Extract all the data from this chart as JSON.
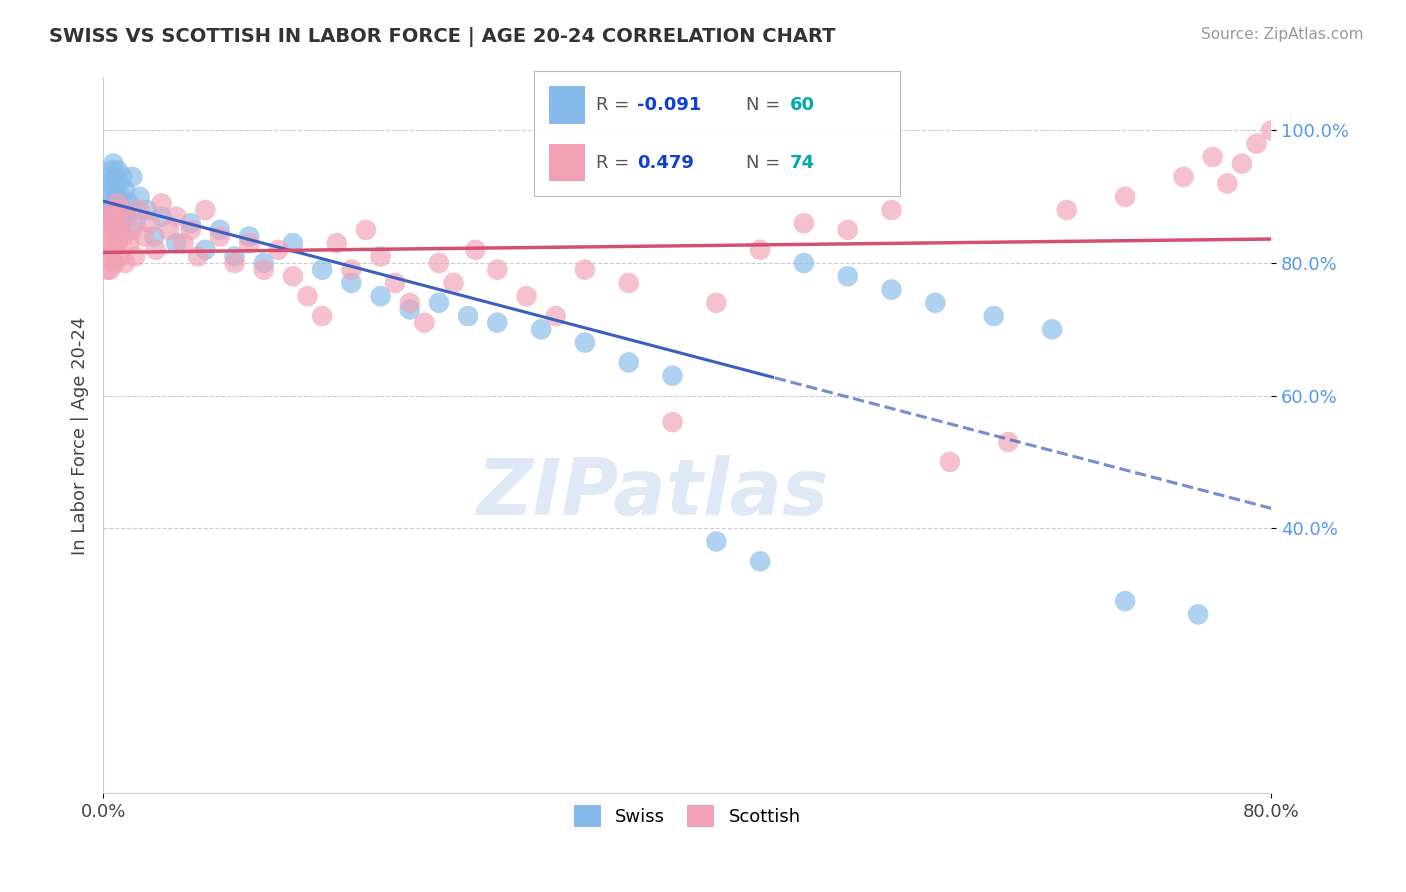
{
  "title": "SWISS VS SCOTTISH IN LABOR FORCE | AGE 20-24 CORRELATION CHART",
  "source_text": "Source: ZipAtlas.com",
  "ylabel": "In Labor Force | Age 20-24",
  "xlim": [
    0.0,
    0.8
  ],
  "ylim": [
    0.0,
    1.08
  ],
  "xtick_labels": [
    "0.0%",
    "80.0%"
  ],
  "xtick_positions": [
    0.0,
    0.8
  ],
  "ytick_labels": [
    "40.0%",
    "60.0%",
    "80.0%",
    "100.0%"
  ],
  "ytick_positions": [
    0.4,
    0.6,
    0.8,
    1.0
  ],
  "swiss_color": "#85BAEA",
  "scottish_color": "#F2A0B5",
  "swiss_line_color": "#3B5FC0",
  "scottish_line_color": "#D45070",
  "swiss_R": -0.091,
  "swiss_N": 60,
  "scottish_R": 0.479,
  "scottish_N": 74,
  "legend_R_color": "#1040D0",
  "legend_N_color": "#00AAAA",
  "watermark_text": "ZIPatlas",
  "swiss_x": [
    0.002,
    0.003,
    0.003,
    0.004,
    0.004,
    0.005,
    0.005,
    0.006,
    0.006,
    0.007,
    0.007,
    0.008,
    0.008,
    0.009,
    0.009,
    0.01,
    0.01,
    0.011,
    0.011,
    0.012,
    0.013,
    0.014,
    0.015,
    0.016,
    0.018,
    0.02,
    0.022,
    0.025,
    0.03,
    0.035,
    0.04,
    0.05,
    0.06,
    0.07,
    0.08,
    0.09,
    0.1,
    0.11,
    0.13,
    0.15,
    0.17,
    0.19,
    0.21,
    0.23,
    0.25,
    0.27,
    0.3,
    0.33,
    0.36,
    0.39,
    0.42,
    0.45,
    0.48,
    0.51,
    0.54,
    0.57,
    0.61,
    0.65,
    0.7,
    0.75
  ],
  "swiss_y": [
    0.88,
    0.91,
    0.87,
    0.93,
    0.89,
    0.92,
    0.85,
    0.94,
    0.88,
    0.95,
    0.91,
    0.86,
    0.93,
    0.9,
    0.87,
    0.94,
    0.88,
    0.92,
    0.85,
    0.9,
    0.93,
    0.88,
    0.91,
    0.87,
    0.89,
    0.93,
    0.86,
    0.9,
    0.88,
    0.84,
    0.87,
    0.83,
    0.86,
    0.82,
    0.85,
    0.81,
    0.84,
    0.8,
    0.83,
    0.79,
    0.77,
    0.75,
    0.73,
    0.74,
    0.72,
    0.71,
    0.7,
    0.68,
    0.65,
    0.63,
    0.38,
    0.35,
    0.8,
    0.78,
    0.76,
    0.74,
    0.72,
    0.7,
    0.29,
    0.27
  ],
  "scottish_x": [
    0.002,
    0.003,
    0.003,
    0.004,
    0.004,
    0.005,
    0.005,
    0.006,
    0.006,
    0.007,
    0.007,
    0.008,
    0.009,
    0.01,
    0.01,
    0.011,
    0.012,
    0.013,
    0.014,
    0.015,
    0.016,
    0.018,
    0.02,
    0.022,
    0.025,
    0.028,
    0.032,
    0.036,
    0.04,
    0.045,
    0.05,
    0.055,
    0.06,
    0.065,
    0.07,
    0.08,
    0.09,
    0.1,
    0.11,
    0.12,
    0.13,
    0.14,
    0.15,
    0.16,
    0.17,
    0.18,
    0.19,
    0.2,
    0.21,
    0.22,
    0.23,
    0.24,
    0.255,
    0.27,
    0.29,
    0.31,
    0.33,
    0.36,
    0.39,
    0.42,
    0.45,
    0.48,
    0.51,
    0.54,
    0.58,
    0.62,
    0.66,
    0.7,
    0.74,
    0.76,
    0.77,
    0.78,
    0.79,
    0.8
  ],
  "scottish_y": [
    0.82,
    0.79,
    0.85,
    0.81,
    0.87,
    0.83,
    0.79,
    0.86,
    0.82,
    0.88,
    0.84,
    0.8,
    0.87,
    0.83,
    0.89,
    0.85,
    0.81,
    0.88,
    0.84,
    0.8,
    0.87,
    0.83,
    0.85,
    0.81,
    0.88,
    0.84,
    0.86,
    0.82,
    0.89,
    0.85,
    0.87,
    0.83,
    0.85,
    0.81,
    0.88,
    0.84,
    0.8,
    0.83,
    0.79,
    0.82,
    0.78,
    0.75,
    0.72,
    0.83,
    0.79,
    0.85,
    0.81,
    0.77,
    0.74,
    0.71,
    0.8,
    0.77,
    0.82,
    0.79,
    0.75,
    0.72,
    0.79,
    0.77,
    0.56,
    0.74,
    0.82,
    0.86,
    0.85,
    0.88,
    0.5,
    0.53,
    0.88,
    0.9,
    0.93,
    0.96,
    0.92,
    0.95,
    0.98,
    1.0
  ]
}
